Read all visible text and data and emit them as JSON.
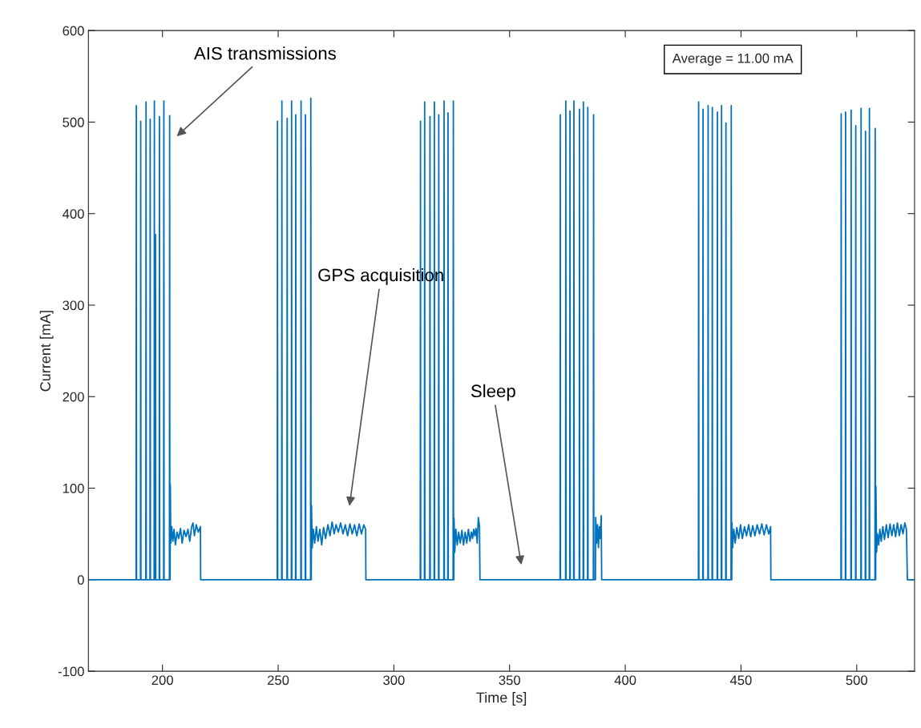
{
  "chart_data": {
    "type": "line",
    "xlabel": "Time [s]",
    "ylabel": "Current [mA]",
    "xlim": [
      168,
      525
    ],
    "ylim": [
      -100,
      600
    ],
    "xticks": [
      200,
      250,
      300,
      350,
      400,
      450,
      500
    ],
    "yticks": [
      -100,
      0,
      100,
      200,
      300,
      400,
      500,
      600
    ],
    "grid": false,
    "marker": "none",
    "line_style": "solid",
    "series": [
      {
        "color": "#0072bd",
        "x": [
          168,
          188.6,
          188.7,
          188.8,
          190.5,
          190.6,
          190.7,
          192.8,
          192.9,
          193.0,
          194.6,
          194.7,
          194.8,
          196.4,
          196.5,
          196.6,
          196.9,
          197.0,
          197.1,
          198.6,
          198.7,
          198.8,
          200.5,
          200.6,
          200.7,
          203.0,
          203.1,
          203.2,
          203.3,
          203.4,
          203.6,
          204.0,
          204.5,
          205.0,
          205.6,
          206.3,
          207.0,
          207.8,
          208.5,
          209.3,
          210.2,
          211.0,
          211.8,
          212.6,
          213.2,
          213.8,
          214.6,
          215.5,
          216.4,
          216.5,
          249.6,
          249.7,
          249.8,
          251.5,
          251.6,
          251.7,
          253.8,
          253.9,
          254.0,
          255.7,
          255.8,
          255.9,
          257.5,
          257.6,
          257.7,
          259.8,
          259.9,
          260.0,
          261.7,
          261.8,
          261.9,
          264.0,
          264.1,
          264.2,
          264.3,
          264.4,
          264.7,
          265.2,
          265.8,
          266.5,
          267.2,
          268.0,
          268.8,
          269.6,
          270.5,
          271.5,
          272.4,
          273.3,
          274.2,
          275.0,
          276.0,
          277.0,
          278.0,
          279.0,
          280.0,
          281.0,
          282.0,
          283.0,
          284.0,
          285.0,
          286.0,
          287.0,
          287.8,
          287.9,
          311.4,
          311.5,
          311.6,
          313.2,
          313.3,
          313.4,
          315.5,
          315.6,
          315.7,
          317.4,
          317.5,
          317.6,
          319.3,
          319.4,
          319.5,
          321.6,
          321.7,
          321.8,
          323.3,
          323.4,
          323.5,
          325.6,
          325.7,
          325.8,
          325.9,
          326.0,
          326.3,
          326.8,
          327.4,
          328.0,
          328.7,
          329.4,
          330.1,
          330.8,
          331.5,
          332.2,
          332.9,
          333.5,
          334.0,
          334.5,
          335.0,
          335.5,
          336.0,
          336.5,
          337.0,
          337.2,
          371.8,
          371.9,
          372.0,
          374.2,
          374.3,
          374.4,
          376.0,
          376.1,
          376.2,
          377.7,
          377.8,
          377.9,
          380.1,
          380.2,
          380.3,
          381.8,
          381.9,
          382.0,
          383.7,
          383.8,
          383.9,
          386.2,
          386.3,
          386.4,
          387.1,
          387.2,
          387.6,
          388.0,
          388.4,
          388.8,
          389.2,
          389.6,
          389.8,
          431.6,
          431.7,
          431.8,
          433.5,
          433.6,
          433.7,
          435.7,
          435.8,
          435.9,
          437.5,
          437.6,
          437.7,
          439.7,
          439.8,
          439.9,
          441.5,
          441.6,
          441.7,
          443.4,
          443.5,
          443.6,
          445.7,
          445.8,
          445.9,
          446.0,
          446.1,
          446.4,
          446.9,
          447.5,
          448.2,
          449.0,
          449.8,
          450.6,
          451.5,
          452.4,
          453.3,
          454.2,
          455.1,
          456.0,
          457.0,
          458.0,
          459.0,
          460.0,
          461.0,
          462.0,
          462.8,
          462.9,
          493.2,
          493.3,
          493.4,
          495.1,
          495.2,
          495.3,
          497.5,
          497.6,
          497.7,
          499.5,
          499.6,
          499.7,
          501.8,
          501.9,
          502.0,
          503.7,
          503.8,
          503.9,
          505.4,
          505.5,
          505.6,
          507.9,
          508.0,
          508.1,
          508.2,
          508.3,
          508.6,
          509.0,
          509.5,
          510.0,
          510.6,
          511.3,
          512.0,
          512.8,
          513.6,
          514.4,
          515.2,
          516.0,
          516.8,
          517.6,
          518.4,
          519.2,
          520.0,
          520.8,
          521.5,
          521.9,
          525
        ],
        "values": [
          0,
          0,
          518,
          0,
          0,
          501,
          0,
          0,
          522,
          0,
          0,
          503,
          0,
          0,
          523,
          0,
          0,
          377,
          0,
          0,
          506,
          0,
          0,
          523,
          0,
          0,
          507,
          0,
          0,
          104,
          40,
          58,
          42,
          55,
          38,
          52,
          45,
          56,
          40,
          54,
          47,
          55,
          42,
          58,
          62,
          48,
          60,
          52,
          58,
          0,
          0,
          501,
          0,
          0,
          523,
          0,
          0,
          504,
          0,
          0,
          523,
          0,
          0,
          508,
          0,
          0,
          523,
          0,
          0,
          508,
          0,
          0,
          526,
          0,
          0,
          81,
          35,
          55,
          40,
          58,
          42,
          55,
          38,
          57,
          45,
          60,
          48,
          63,
          50,
          60,
          52,
          62,
          50,
          60,
          48,
          61,
          50,
          60,
          48,
          61,
          50,
          60,
          55,
          0,
          0,
          501,
          0,
          0,
          522,
          0,
          0,
          506,
          0,
          0,
          522,
          0,
          0,
          508,
          0,
          0,
          523,
          0,
          0,
          510,
          0,
          0,
          523,
          0,
          0,
          67,
          30,
          55,
          38,
          52,
          40,
          54,
          38,
          52,
          40,
          55,
          42,
          52,
          45,
          55,
          48,
          56,
          40,
          68,
          58,
          0,
          0,
          508,
          0,
          0,
          523,
          0,
          0,
          512,
          0,
          0,
          523,
          0,
          0,
          514,
          0,
          0,
          522,
          0,
          0,
          516,
          0,
          0,
          508,
          0,
          0,
          68,
          40,
          60,
          35,
          58,
          45,
          70,
          0,
          0,
          522,
          0,
          0,
          514,
          0,
          0,
          518,
          0,
          0,
          516,
          0,
          0,
          511,
          0,
          0,
          518,
          0,
          0,
          499,
          0,
          0,
          518,
          0,
          0,
          62,
          35,
          55,
          40,
          57,
          45,
          60,
          45,
          58,
          48,
          60,
          47,
          59,
          48,
          60,
          50,
          61,
          49,
          60,
          50,
          58,
          0,
          0,
          509,
          0,
          0,
          511,
          0,
          0,
          513,
          0,
          0,
          496,
          0,
          0,
          515,
          0,
          0,
          490,
          0,
          0,
          515,
          0,
          0,
          493,
          0,
          0,
          102,
          30,
          50,
          38,
          55,
          42,
          58,
          44,
          60,
          46,
          61,
          48,
          60,
          47,
          62,
          48,
          60,
          50,
          62,
          55,
          0,
          0
        ]
      }
    ],
    "annotations": [
      "AIS transmissions",
      "GPS acquisition",
      "Sleep",
      "Average = 11.00 mA"
    ]
  }
}
